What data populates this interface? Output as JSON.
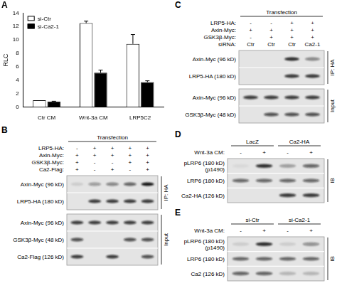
{
  "chart_data": {
    "type": "bar",
    "title": "A",
    "y_label": "RLC",
    "categories": [
      "Ctr CM",
      "Wnt-3a CM",
      "LRP5C2"
    ],
    "series": [
      {
        "name": "si-Ctr",
        "color": "#ffffff",
        "values": [
          1.0,
          12.5,
          9.4
        ],
        "errors": [
          0,
          0.3,
          1.4
        ]
      },
      {
        "name": "si-Ca2-1",
        "color": "#000000",
        "values": [
          0.8,
          5.1,
          3.7
        ],
        "errors": [
          0.05,
          0.4,
          0.2
        ]
      }
    ],
    "ylim": [
      0,
      14
    ],
    "yticks": [
      0,
      2,
      4,
      6,
      8,
      10,
      12,
      14
    ],
    "grid": false,
    "legend": "top-left"
  },
  "blots": [
    {
      "letter": "B",
      "title": "Transfection",
      "conditions": [
        {
          "label": "LRP5-HA:",
          "values": [
            "-",
            "+",
            "+",
            "+",
            "+"
          ]
        },
        {
          "label": "Axin-Myc:",
          "values": [
            "+",
            "+",
            "+",
            "+",
            "+"
          ]
        },
        {
          "label": "GSK3β-Myc:",
          "values": [
            "+",
            "-",
            "-",
            "+",
            "+"
          ]
        },
        {
          "label": "Ca2-Flag:",
          "values": [
            "+",
            "-",
            "+",
            "-",
            "+"
          ]
        }
      ],
      "groups": [
        {
          "label": "IP: HA",
          "rows": [
            {
              "label": [
                "Axin-Myc (96 kD)"
              ],
              "bands": [
                0.1,
                0.35,
                0.45,
                0.6,
                0.95
              ]
            },
            {
              "label": [
                "LRP5-HA (180 kD)"
              ],
              "bands": [
                0,
                0.8,
                0.8,
                0.8,
                0.8
              ]
            }
          ]
        },
        {
          "label": "Input",
          "rows": [
            {
              "label": [
                "Axin-Myc (96 kD)"
              ],
              "bands": [
                0.8,
                0.8,
                0.8,
                0.8,
                0.8
              ]
            },
            {
              "label": [
                "GSK3β-Myc (48 kD)"
              ],
              "bands": [
                0.7,
                0,
                0,
                0.7,
                0.7
              ]
            },
            {
              "label": [
                "Ca2-Flag (126 kD)"
              ],
              "bands": [
                0.8,
                0,
                0.8,
                0,
                0.7
              ]
            }
          ]
        }
      ]
    },
    {
      "letter": "C",
      "title": "Transfection",
      "conditions": [
        {
          "label": "LRP5-HA:",
          "values": [
            "-",
            "-",
            "+",
            "+"
          ]
        },
        {
          "label": "Axin-Myc:",
          "values": [
            "+",
            "+",
            "+",
            "+"
          ]
        },
        {
          "label": "GSK3β-Myc:",
          "values": [
            "-",
            "+",
            "+",
            "+"
          ]
        },
        {
          "label": "siRNA:",
          "values": [
            "Ctr",
            "Ctr",
            "Ctr",
            "Ca2-1"
          ]
        }
      ],
      "groups": [
        {
          "label": "IP: HA",
          "rows": [
            {
              "label": [
                "Axin-Myc (96 kD)"
              ],
              "bands": [
                0,
                0,
                0.85,
                0.45
              ]
            },
            {
              "label": [
                "LRP5-HA (180 kD)"
              ],
              "bands": [
                0,
                0,
                0.8,
                0.8
              ]
            }
          ]
        },
        {
          "label": "Input",
          "rows": [
            {
              "label": [
                "Axin-Myc (96 kD)"
              ],
              "bands": [
                0.8,
                0.8,
                0.8,
                0.8
              ]
            },
            {
              "label": [
                "GSK3β-Myc (48 kD)"
              ],
              "bands": [
                0,
                0.7,
                0.7,
                0.7
              ]
            }
          ]
        }
      ]
    },
    {
      "letter": "D",
      "lane_groups": [
        "LacZ",
        "Ca2-HA"
      ],
      "conditions": [
        {
          "label": "Wnt-3a CM:",
          "values": [
            "-",
            "+",
            "-",
            "+"
          ]
        }
      ],
      "groups": [
        {
          "label": "IB",
          "rows": [
            {
              "label": [
                "pLRP6 (180 kD)",
                "(p1490)"
              ],
              "bands": [
                0.05,
                0.85,
                0.3,
                0.6
              ]
            },
            {
              "label": [
                "LRP6 (180 kD)"
              ],
              "bands": [
                0.6,
                0.6,
                0.6,
                0.6
              ]
            },
            {
              "label": [
                "Ca2-HA (126 kD)"
              ],
              "bands": [
                0,
                0,
                0.8,
                0.8
              ]
            }
          ]
        }
      ]
    },
    {
      "letter": "E",
      "lane_groups": [
        "si-Ctr",
        "si-Ca2-1"
      ],
      "conditions": [
        {
          "label": "Wnt-3a CM:",
          "values": [
            "-",
            "+",
            "-",
            "+"
          ]
        }
      ],
      "groups": [
        {
          "label": "IB",
          "rows": [
            {
              "label": [
                "pLRP6 (180 kD)",
                "(p1490)"
              ],
              "bands": [
                0.1,
                0.85,
                0.1,
                0.4
              ]
            },
            {
              "label": [
                "LRP6 (180 kD)"
              ],
              "bands": [
                0.6,
                0.6,
                0.6,
                0.6
              ]
            },
            {
              "label": [
                "Ca2 (126 kD)"
              ],
              "bands": [
                0.6,
                0.6,
                0.2,
                0.2
              ]
            }
          ]
        }
      ]
    }
  ]
}
